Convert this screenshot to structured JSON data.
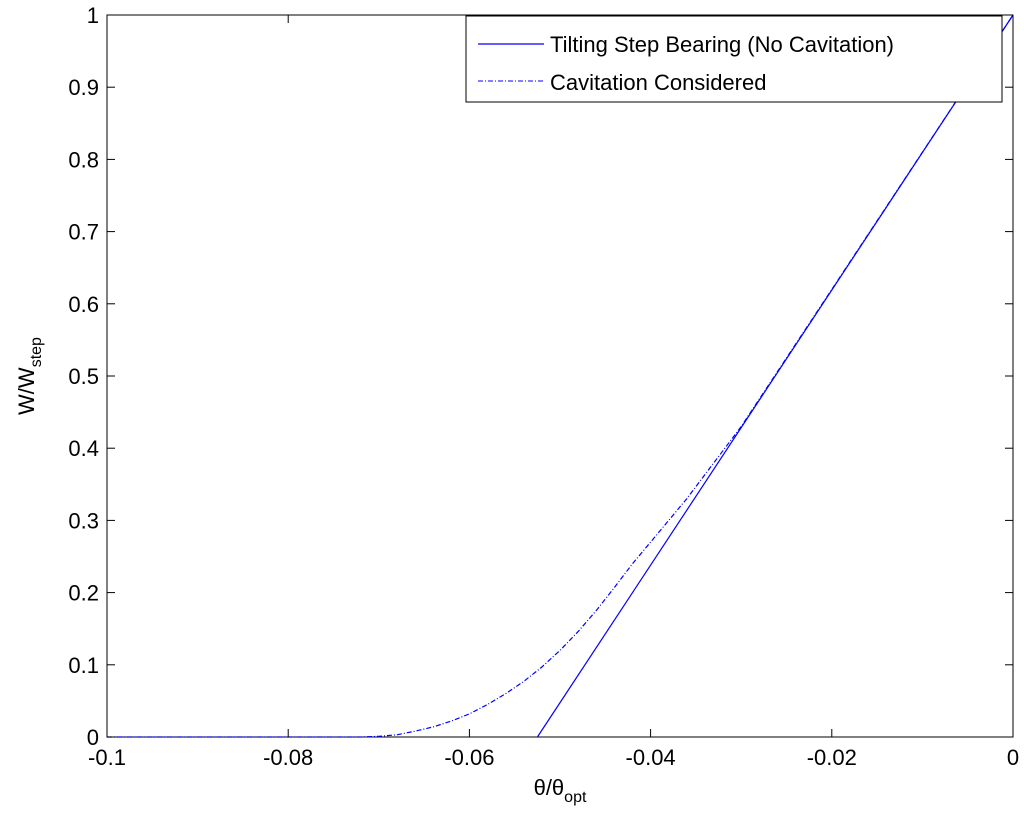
{
  "chart_data": {
    "type": "line",
    "xlabel": {
      "main": "θ/θ",
      "sub": "opt"
    },
    "ylabel": {
      "main": "W/W",
      "sub": "step"
    },
    "xlim": [
      -0.1,
      0
    ],
    "ylim": [
      0,
      1
    ],
    "x_ticks": [
      {
        "value": -0.1,
        "label": "-0.1"
      },
      {
        "value": -0.08,
        "label": "-0.08"
      },
      {
        "value": -0.06,
        "label": "-0.06"
      },
      {
        "value": -0.04,
        "label": "-0.04"
      },
      {
        "value": -0.02,
        "label": "-0.02"
      },
      {
        "value": 0,
        "label": "0"
      }
    ],
    "y_ticks": [
      {
        "value": 0,
        "label": "0"
      },
      {
        "value": 0.1,
        "label": "0.1"
      },
      {
        "value": 0.2,
        "label": "0.2"
      },
      {
        "value": 0.3,
        "label": "0.3"
      },
      {
        "value": 0.4,
        "label": "0.4"
      },
      {
        "value": 0.5,
        "label": "0.5"
      },
      {
        "value": 0.6,
        "label": "0.6"
      },
      {
        "value": 0.7,
        "label": "0.7"
      },
      {
        "value": 0.8,
        "label": "0.8"
      },
      {
        "value": 0.9,
        "label": "0.9"
      },
      {
        "value": 1,
        "label": "1"
      }
    ],
    "grid": false,
    "legend_position": "top-right",
    "series": [
      {
        "name": "Tilting Step Bearing (No Cavitation)",
        "style": "solid",
        "color": "#0000ff",
        "points": [
          [
            -0.0525,
            0
          ],
          [
            0,
            1
          ]
        ]
      },
      {
        "name": "Cavitation Considered",
        "style": "dashdot",
        "color": "#0000ff",
        "points": [
          [
            -0.1,
            0
          ],
          [
            -0.09,
            0
          ],
          [
            -0.08,
            0
          ],
          [
            -0.072,
            0
          ],
          [
            -0.07,
            0.001
          ],
          [
            -0.068,
            0.003
          ],
          [
            -0.066,
            0.008
          ],
          [
            -0.064,
            0.014
          ],
          [
            -0.062,
            0.022
          ],
          [
            -0.06,
            0.032
          ],
          [
            -0.058,
            0.045
          ],
          [
            -0.056,
            0.06
          ],
          [
            -0.054,
            0.077
          ],
          [
            -0.052,
            0.097
          ],
          [
            -0.05,
            0.12
          ],
          [
            -0.048,
            0.146
          ],
          [
            -0.046,
            0.175
          ],
          [
            -0.044,
            0.207
          ],
          [
            -0.042,
            0.24
          ],
          [
            -0.04,
            0.27
          ],
          [
            -0.038,
            0.3
          ],
          [
            -0.036,
            0.33
          ],
          [
            -0.03,
            0.43
          ],
          [
            -0.02,
            0.62
          ],
          [
            -0.01,
            0.81
          ],
          [
            0,
            1
          ]
        ]
      }
    ]
  }
}
